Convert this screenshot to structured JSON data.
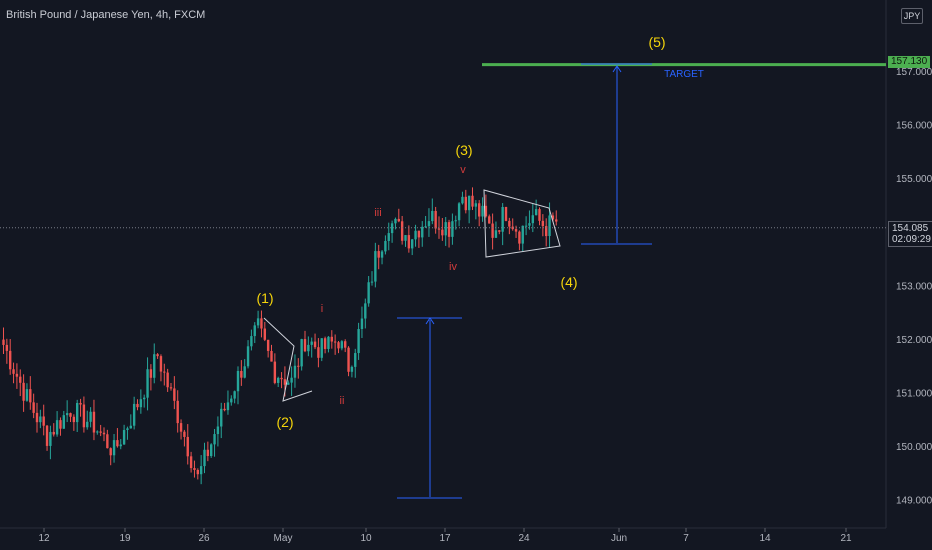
{
  "header": {
    "symbol_title": "British Pound / Japanese Yen, 4h, FXCM",
    "currency_badge": "JPY"
  },
  "price_tags": {
    "target_value": "157.130",
    "last_value": "154.085",
    "countdown": "02:09:29"
  },
  "colors": {
    "background": "#131722",
    "up": "#26a69a",
    "down": "#ef5350",
    "target_line": "#4caf50",
    "measure": "#2962ff",
    "wave_label": "#f5d50b",
    "subwave_label": "#d33c3c",
    "triangle": "#d1d4dc"
  },
  "chart_data": {
    "type": "candlestick",
    "title": "British Pound / Japanese Yen, 4h, FXCM",
    "ylim": [
      148.8,
      157.7
    ],
    "y_ticks": [
      "149.000",
      "150.000",
      "151.000",
      "152.000",
      "153.000",
      "154.000",
      "155.000",
      "156.000",
      "157.000"
    ],
    "x_ticks": [
      "12",
      "19",
      "26",
      "May",
      "10",
      "17",
      "24",
      "Jun",
      "7",
      "14",
      "21"
    ],
    "series": [
      {
        "anchors": [
          [
            0,
            151.9
          ],
          [
            7,
            150.9
          ],
          [
            13,
            150.2
          ],
          [
            20,
            150.7
          ],
          [
            27,
            150.4
          ],
          [
            33,
            149.9
          ],
          [
            40,
            150.8
          ],
          [
            46,
            151.7
          ],
          [
            52,
            150.6
          ],
          [
            58,
            149.4
          ],
          [
            64,
            150.4
          ],
          [
            70,
            151.3
          ],
          [
            76,
            152.2
          ],
          [
            81,
            151.4
          ],
          [
            86,
            151.2
          ],
          [
            90,
            152.0
          ],
          [
            95,
            151.8
          ],
          [
            100,
            152.0
          ],
          [
            103,
            151.5
          ],
          [
            107,
            152.3
          ],
          [
            111,
            153.5
          ],
          [
            115,
            154.2
          ],
          [
            121,
            153.9
          ],
          [
            127,
            154.3
          ],
          [
            133,
            154.1
          ],
          [
            137,
            154.7
          ],
          [
            140,
            154.5
          ],
          [
            143,
            154.3
          ],
          [
            146,
            154.0
          ],
          [
            150,
            154.4
          ],
          [
            154,
            154.0
          ],
          [
            158,
            154.3
          ],
          [
            162,
            154.1
          ],
          [
            165,
            154.2
          ]
        ]
      }
    ],
    "wave_labels": [
      {
        "text": "(1)",
        "role": "wave"
      },
      {
        "text": "(2)",
        "role": "wave"
      },
      {
        "text": "(3)",
        "role": "wave"
      },
      {
        "text": "(4)",
        "role": "wave"
      },
      {
        "text": "(5)",
        "role": "wave"
      },
      {
        "text": "i",
        "role": "subwave"
      },
      {
        "text": "ii",
        "role": "subwave"
      },
      {
        "text": "iii",
        "role": "subwave"
      },
      {
        "text": "iv",
        "role": "subwave"
      },
      {
        "text": "v",
        "role": "subwave"
      }
    ],
    "annotations": [
      {
        "text": "TARGET"
      }
    ],
    "target_level": 157.13,
    "last_price": 154.085,
    "grid": false
  }
}
